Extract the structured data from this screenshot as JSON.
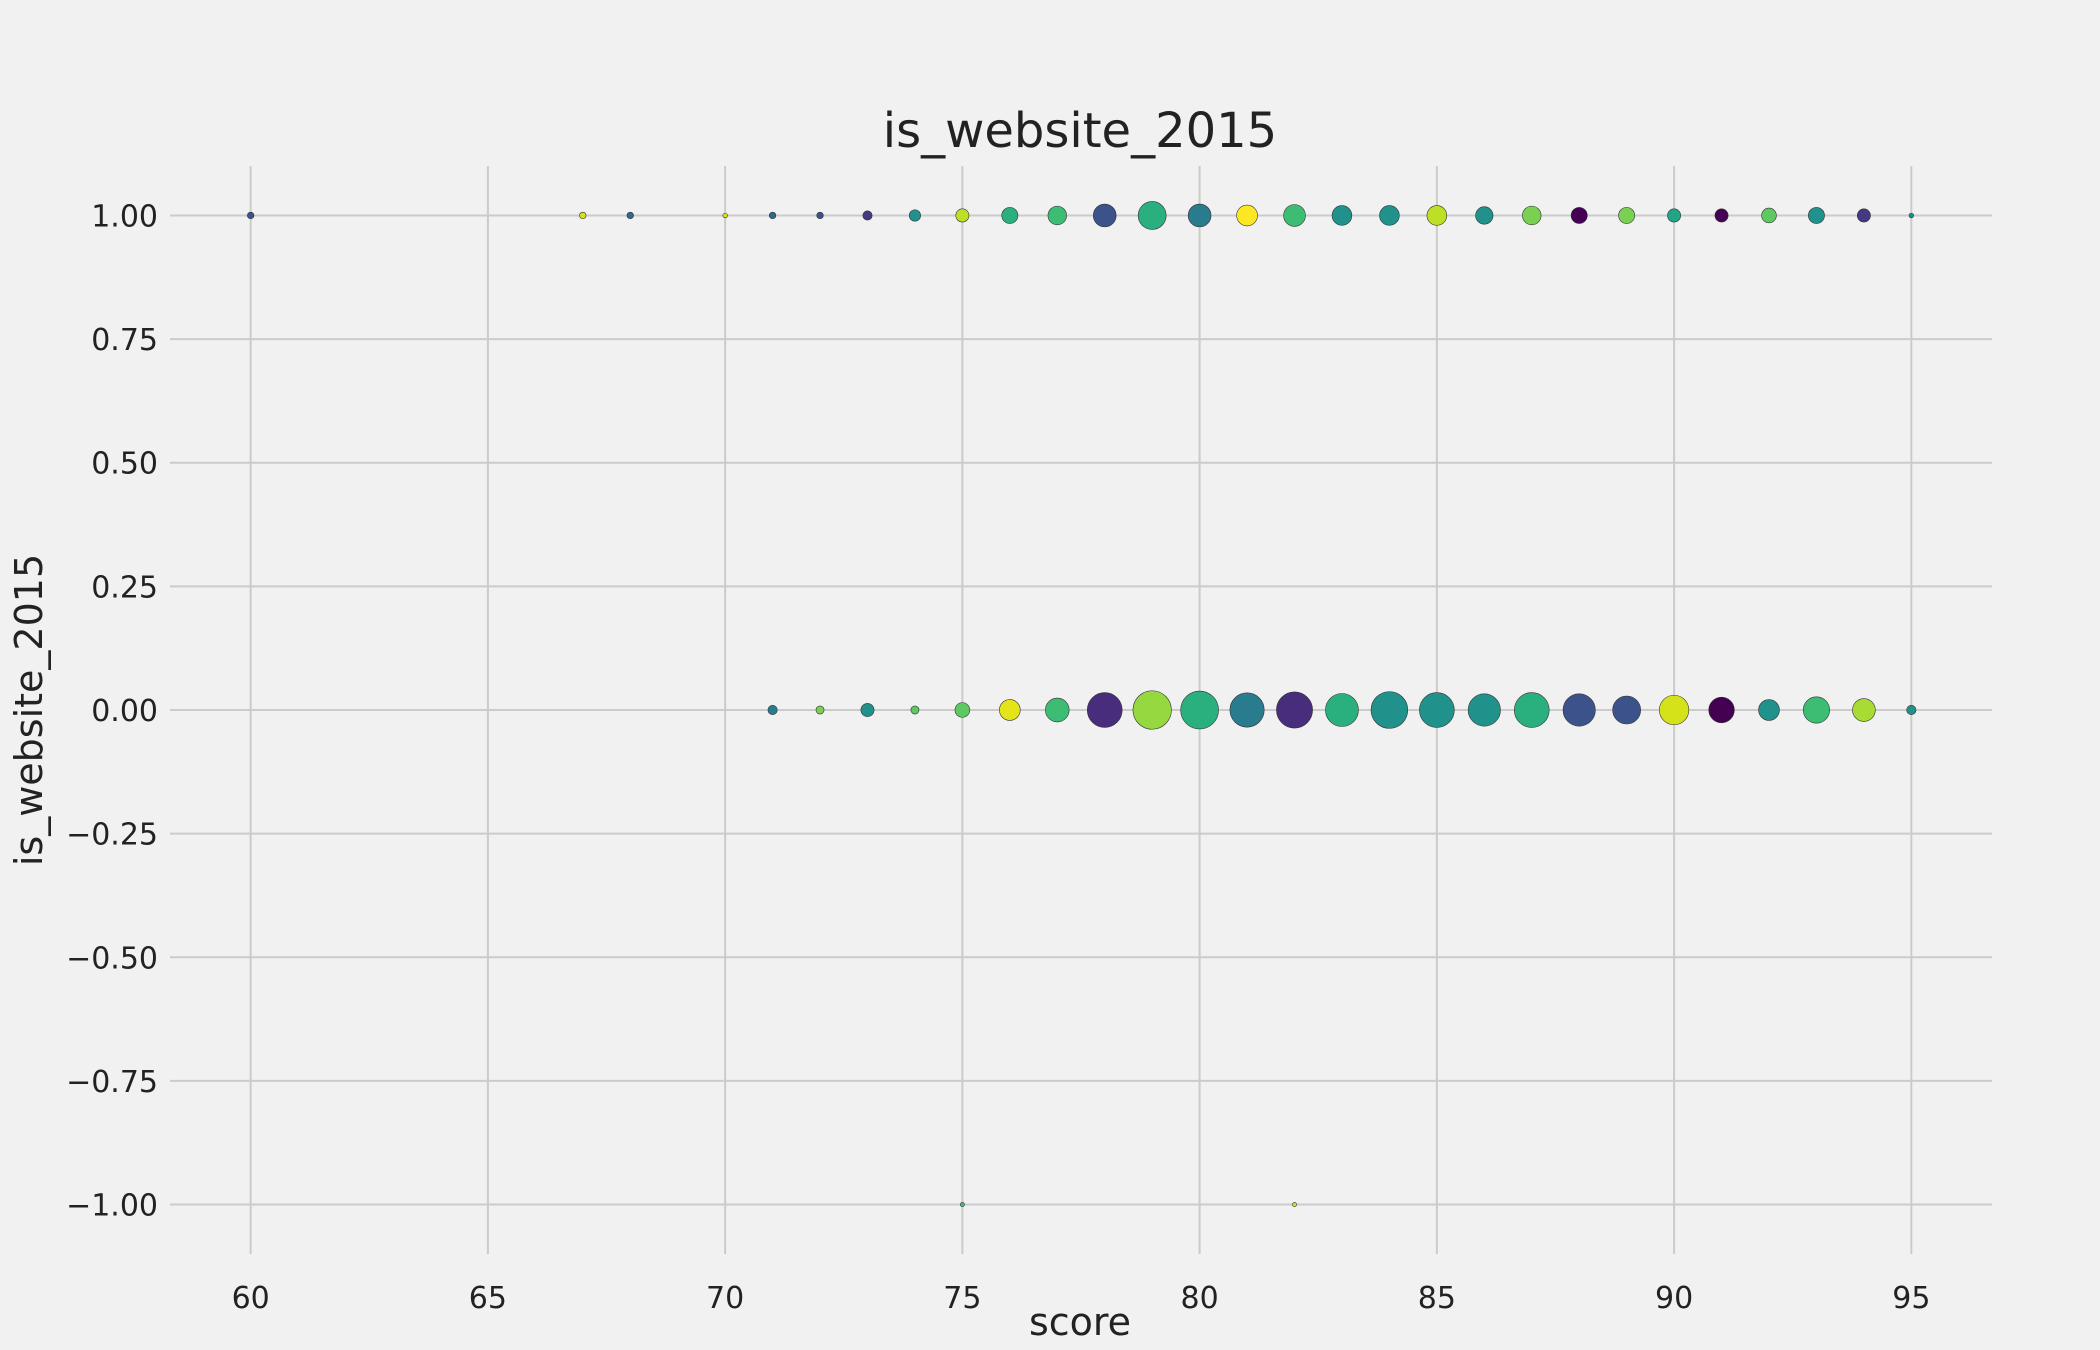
{
  "chart_data": {
    "type": "scatter",
    "title": "is_website_2015",
    "xlabel": "score",
    "ylabel": "is_website_2015",
    "xlim": [
      58.3,
      96.7
    ],
    "ylim": [
      -1.1,
      1.1
    ],
    "x_ticks": [
      60,
      65,
      70,
      75,
      80,
      85,
      90,
      95
    ],
    "y_ticks": [
      1.0,
      0.75,
      0.5,
      0.25,
      0.0,
      -0.25,
      -0.5,
      -0.75,
      -1.0
    ],
    "x_tick_labels": [
      "60",
      "65",
      "70",
      "75",
      "80",
      "85",
      "90",
      "95"
    ],
    "y_tick_labels": [
      "1.00",
      "0.75",
      "0.50",
      "0.25",
      "0.00",
      "−0.25",
      "−0.50",
      "−0.75",
      "−1.00"
    ],
    "grid": true,
    "legend": "none",
    "marker_size_meaning": "relative count (marker area)",
    "points": [
      {
        "x": 60,
        "y": 1,
        "size": 1,
        "color": "#3b528b"
      },
      {
        "x": 67,
        "y": 1,
        "size": 1,
        "color": "#d5e21a"
      },
      {
        "x": 68,
        "y": 1,
        "size": 1,
        "color": "#31688e"
      },
      {
        "x": 70,
        "y": 1,
        "size": 0.5,
        "color": "#d5e21a"
      },
      {
        "x": 71,
        "y": 1,
        "size": 1,
        "color": "#31688e"
      },
      {
        "x": 72,
        "y": 1,
        "size": 1,
        "color": "#3b528b"
      },
      {
        "x": 73,
        "y": 1,
        "size": 2,
        "color": "#443a83"
      },
      {
        "x": 74,
        "y": 1,
        "size": 3,
        "color": "#21918c"
      },
      {
        "x": 75,
        "y": 1,
        "size": 4,
        "color": "#bddf26"
      },
      {
        "x": 76,
        "y": 1,
        "size": 6,
        "color": "#2ab07f"
      },
      {
        "x": 77,
        "y": 1,
        "size": 8,
        "color": "#3dbc74"
      },
      {
        "x": 78,
        "y": 1,
        "size": 12,
        "color": "#3b528b"
      },
      {
        "x": 79,
        "y": 1,
        "size": 18,
        "color": "#2ab07f"
      },
      {
        "x": 80,
        "y": 1,
        "size": 12,
        "color": "#287c8e"
      },
      {
        "x": 81,
        "y": 1,
        "size": 10,
        "color": "#fde725"
      },
      {
        "x": 82,
        "y": 1,
        "size": 11,
        "color": "#3dbc74"
      },
      {
        "x": 83,
        "y": 1,
        "size": 9,
        "color": "#21918c"
      },
      {
        "x": 84,
        "y": 1,
        "size": 9,
        "color": "#21918c"
      },
      {
        "x": 85,
        "y": 1,
        "size": 9,
        "color": "#bddf26"
      },
      {
        "x": 86,
        "y": 1,
        "size": 7,
        "color": "#21918c"
      },
      {
        "x": 87,
        "y": 1,
        "size": 8,
        "color": "#7ad151"
      },
      {
        "x": 88,
        "y": 1,
        "size": 6,
        "color": "#440154"
      },
      {
        "x": 89,
        "y": 1,
        "size": 6,
        "color": "#7ad151"
      },
      {
        "x": 90,
        "y": 1,
        "size": 4,
        "color": "#21a585"
      },
      {
        "x": 91,
        "y": 1,
        "size": 4,
        "color": "#440154"
      },
      {
        "x": 92,
        "y": 1,
        "size": 5,
        "color": "#5ec962"
      },
      {
        "x": 93,
        "y": 1,
        "size": 6,
        "color": "#21918c"
      },
      {
        "x": 94,
        "y": 1,
        "size": 4,
        "color": "#443a83"
      },
      {
        "x": 95,
        "y": 1,
        "size": 0.5,
        "color": "#21918c"
      },
      {
        "x": 71,
        "y": 0,
        "size": 2,
        "color": "#287c8e"
      },
      {
        "x": 72,
        "y": 0,
        "size": 1.5,
        "color": "#7ad151"
      },
      {
        "x": 73,
        "y": 0,
        "size": 4,
        "color": "#21918c"
      },
      {
        "x": 74,
        "y": 0,
        "size": 1.5,
        "color": "#5ec962"
      },
      {
        "x": 75,
        "y": 0,
        "size": 5,
        "color": "#5ec962"
      },
      {
        "x": 76,
        "y": 0,
        "size": 10,
        "color": "#e5e419"
      },
      {
        "x": 77,
        "y": 0,
        "size": 13,
        "color": "#3dbc74"
      },
      {
        "x": 78,
        "y": 0,
        "size": 28,
        "color": "#472d7b"
      },
      {
        "x": 79,
        "y": 0,
        "size": 34,
        "color": "#95d840"
      },
      {
        "x": 80,
        "y": 0,
        "size": 33,
        "color": "#2ab07f"
      },
      {
        "x": 81,
        "y": 0,
        "size": 27,
        "color": "#287c8e"
      },
      {
        "x": 82,
        "y": 0,
        "size": 30,
        "color": "#472d7b"
      },
      {
        "x": 83,
        "y": 0,
        "size": 25,
        "color": "#2ab07f"
      },
      {
        "x": 84,
        "y": 0,
        "size": 31,
        "color": "#21918c"
      },
      {
        "x": 85,
        "y": 0,
        "size": 28,
        "color": "#21918c"
      },
      {
        "x": 86,
        "y": 0,
        "size": 24,
        "color": "#21918c"
      },
      {
        "x": 87,
        "y": 0,
        "size": 28,
        "color": "#2ab07f"
      },
      {
        "x": 88,
        "y": 0,
        "size": 24,
        "color": "#3b528b"
      },
      {
        "x": 89,
        "y": 0,
        "size": 18,
        "color": "#3b528b"
      },
      {
        "x": 90,
        "y": 0,
        "size": 20,
        "color": "#d5e21a"
      },
      {
        "x": 91,
        "y": 0,
        "size": 15,
        "color": "#440154"
      },
      {
        "x": 92,
        "y": 0,
        "size": 10,
        "color": "#21918c"
      },
      {
        "x": 93,
        "y": 0,
        "size": 16,
        "color": "#3dbc74"
      },
      {
        "x": 94,
        "y": 0,
        "size": 12,
        "color": "#a8db34"
      },
      {
        "x": 95,
        "y": 0,
        "size": 2,
        "color": "#21918c"
      },
      {
        "x": 75,
        "y": -1,
        "size": 0.4,
        "color": "#3dbc74"
      },
      {
        "x": 82,
        "y": -1,
        "size": 0.4,
        "color": "#d5e21a"
      }
    ]
  }
}
